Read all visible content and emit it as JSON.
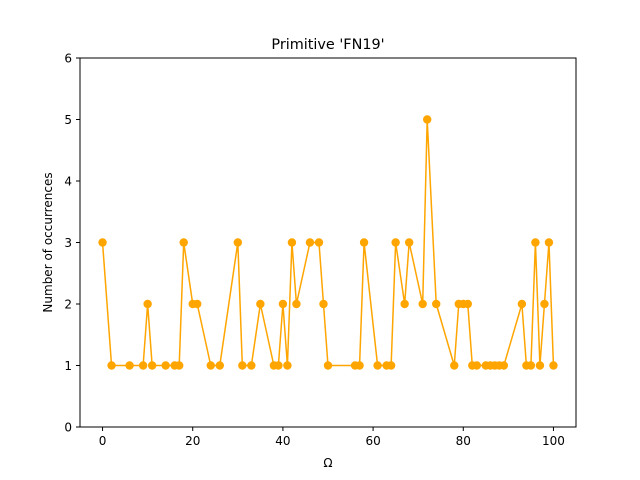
{
  "chart_data": {
    "type": "line",
    "title": "Primitive 'FN19'",
    "xlabel": "Ω",
    "ylabel": "Number of occurrences",
    "xlim": [
      -5,
      105
    ],
    "ylim": [
      0,
      6
    ],
    "xticks": [
      0,
      20,
      40,
      60,
      80,
      100
    ],
    "yticks": [
      0,
      1,
      2,
      3,
      4,
      5,
      6
    ],
    "grid": false,
    "color": "#FFA500",
    "series": [
      {
        "marker": "circle",
        "points": [
          [
            0,
            3
          ],
          [
            2,
            1
          ],
          [
            6,
            1
          ],
          [
            9,
            1
          ],
          [
            10,
            2
          ],
          [
            11,
            1
          ],
          [
            14,
            1
          ],
          [
            16,
            1
          ],
          [
            17,
            1
          ],
          [
            18,
            3
          ],
          [
            20,
            2
          ],
          [
            21,
            2
          ],
          [
            24,
            1
          ],
          [
            26,
            1
          ],
          [
            30,
            3
          ],
          [
            31,
            1
          ],
          [
            33,
            1
          ],
          [
            35,
            2
          ],
          [
            38,
            1
          ],
          [
            39,
            1
          ],
          [
            40,
            2
          ],
          [
            41,
            1
          ],
          [
            42,
            3
          ],
          [
            43,
            2
          ],
          [
            46,
            3
          ],
          [
            48,
            3
          ],
          [
            49,
            2
          ],
          [
            50,
            1
          ],
          [
            56,
            1
          ],
          [
            57,
            1
          ],
          [
            58,
            3
          ],
          [
            61,
            1
          ],
          [
            63,
            1
          ],
          [
            64,
            1
          ],
          [
            65,
            3
          ],
          [
            67,
            2
          ],
          [
            68,
            3
          ],
          [
            71,
            2
          ],
          [
            72,
            5
          ],
          [
            74,
            2
          ],
          [
            78,
            1
          ],
          [
            79,
            2
          ],
          [
            80,
            2
          ],
          [
            81,
            2
          ],
          [
            82,
            1
          ],
          [
            83,
            1
          ],
          [
            85,
            1
          ],
          [
            86,
            1
          ],
          [
            87,
            1
          ],
          [
            88,
            1
          ],
          [
            89,
            1
          ],
          [
            93,
            2
          ],
          [
            94,
            1
          ],
          [
            95,
            1
          ],
          [
            96,
            3
          ],
          [
            97,
            1
          ],
          [
            98,
            2
          ],
          [
            99,
            3
          ],
          [
            100,
            1
          ]
        ]
      }
    ]
  }
}
